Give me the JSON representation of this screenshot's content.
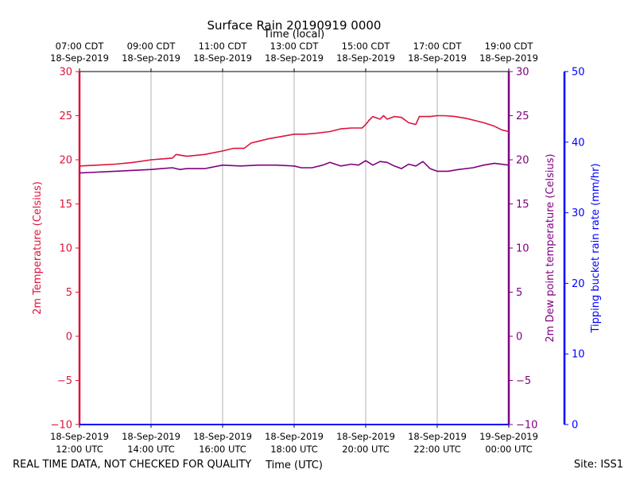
{
  "chart_data": {
    "type": "line",
    "title": "Surface Rain 20190919 0000",
    "top_xlabel": "Time (local)",
    "xlabel": "Time (UTC)",
    "footer_left": "REAL TIME DATA, NOT CHECKED FOR QUALITY",
    "footer_right": "Site: ISS1",
    "x_range_hours_utc": [
      12,
      24
    ],
    "grid": "vertical",
    "top_ticks": [
      {
        "h": 12,
        "l1": "07:00 CDT",
        "l2": "18-Sep-2019"
      },
      {
        "h": 14,
        "l1": "09:00 CDT",
        "l2": "18-Sep-2019"
      },
      {
        "h": 16,
        "l1": "11:00 CDT",
        "l2": "18-Sep-2019"
      },
      {
        "h": 18,
        "l1": "13:00 CDT",
        "l2": "18-Sep-2019"
      },
      {
        "h": 20,
        "l1": "15:00 CDT",
        "l2": "18-Sep-2019"
      },
      {
        "h": 22,
        "l1": "17:00 CDT",
        "l2": "18-Sep-2019"
      },
      {
        "h": 24,
        "l1": "19:00 CDT",
        "l2": "18-Sep-2019"
      }
    ],
    "bottom_ticks": [
      {
        "h": 12,
        "l1": "18-Sep-2019",
        "l2": "12:00 UTC"
      },
      {
        "h": 14,
        "l1": "18-Sep-2019",
        "l2": "14:00 UTC"
      },
      {
        "h": 16,
        "l1": "18-Sep-2019",
        "l2": "16:00 UTC"
      },
      {
        "h": 18,
        "l1": "18-Sep-2019",
        "l2": "18:00 UTC"
      },
      {
        "h": 20,
        "l1": "18-Sep-2019",
        "l2": "20:00 UTC"
      },
      {
        "h": 22,
        "l1": "18-Sep-2019",
        "l2": "22:00 UTC"
      },
      {
        "h": 24,
        "l1": "19-Sep-2019",
        "l2": "00:00 UTC"
      }
    ],
    "axes": {
      "temp": {
        "label": "2m Temperature (Celsius)",
        "color": "#dc143c",
        "range": [
          -10,
          30
        ],
        "ticks": [
          "30",
          "25",
          "20",
          "15",
          "10",
          "5",
          "0",
          "−5",
          "−10"
        ]
      },
      "dew": {
        "label": "2m Dew point temperature (Celsius)",
        "color": "#800080",
        "range": [
          -10,
          30
        ],
        "ticks": [
          "30",
          "25",
          "20",
          "15",
          "10",
          "5",
          "0",
          "−5",
          "−10"
        ]
      },
      "rain": {
        "label": "Tipping bucket rain rate (mm/hr)",
        "color": "#0000ff",
        "range": [
          0,
          50
        ],
        "ticks": [
          "50",
          "40",
          "30",
          "20",
          "10",
          "0"
        ]
      }
    },
    "series": [
      {
        "name": "2m Temperature",
        "color": "#dc143c",
        "points": [
          [
            12.0,
            19.3
          ],
          [
            12.5,
            19.4
          ],
          [
            13.0,
            19.5
          ],
          [
            13.5,
            19.7
          ],
          [
            14.0,
            20.0
          ],
          [
            14.3,
            20.1
          ],
          [
            14.6,
            20.2
          ],
          [
            14.7,
            20.6
          ],
          [
            15.0,
            20.4
          ],
          [
            15.5,
            20.6
          ],
          [
            16.0,
            21.0
          ],
          [
            16.3,
            21.3
          ],
          [
            16.6,
            21.3
          ],
          [
            16.8,
            21.9
          ],
          [
            17.0,
            22.1
          ],
          [
            17.3,
            22.4
          ],
          [
            17.6,
            22.6
          ],
          [
            18.0,
            22.9
          ],
          [
            18.3,
            22.9
          ],
          [
            18.6,
            23.0
          ],
          [
            19.0,
            23.2
          ],
          [
            19.3,
            23.5
          ],
          [
            19.6,
            23.6
          ],
          [
            19.9,
            23.6
          ],
          [
            20.0,
            24.0
          ],
          [
            20.1,
            24.5
          ],
          [
            20.2,
            24.9
          ],
          [
            20.4,
            24.6
          ],
          [
            20.5,
            25.0
          ],
          [
            20.6,
            24.6
          ],
          [
            20.8,
            24.9
          ],
          [
            21.0,
            24.8
          ],
          [
            21.2,
            24.2
          ],
          [
            21.4,
            24.0
          ],
          [
            21.5,
            24.9
          ],
          [
            21.8,
            24.9
          ],
          [
            22.0,
            25.0
          ],
          [
            22.2,
            25.0
          ],
          [
            22.5,
            24.9
          ],
          [
            22.8,
            24.7
          ],
          [
            23.0,
            24.5
          ],
          [
            23.3,
            24.2
          ],
          [
            23.6,
            23.8
          ],
          [
            23.8,
            23.4
          ],
          [
            24.0,
            23.2
          ]
        ]
      },
      {
        "name": "2m Dew point temperature",
        "color": "#800080",
        "points": [
          [
            12.0,
            18.5
          ],
          [
            12.5,
            18.6
          ],
          [
            13.0,
            18.7
          ],
          [
            13.5,
            18.8
          ],
          [
            14.0,
            18.9
          ],
          [
            14.3,
            19.0
          ],
          [
            14.6,
            19.1
          ],
          [
            14.8,
            18.9
          ],
          [
            15.0,
            19.0
          ],
          [
            15.5,
            19.0
          ],
          [
            16.0,
            19.4
          ],
          [
            16.5,
            19.3
          ],
          [
            17.0,
            19.4
          ],
          [
            17.5,
            19.4
          ],
          [
            18.0,
            19.3
          ],
          [
            18.2,
            19.1
          ],
          [
            18.5,
            19.1
          ],
          [
            18.8,
            19.4
          ],
          [
            19.0,
            19.7
          ],
          [
            19.3,
            19.3
          ],
          [
            19.6,
            19.5
          ],
          [
            19.8,
            19.4
          ],
          [
            20.0,
            19.9
          ],
          [
            20.2,
            19.4
          ],
          [
            20.4,
            19.8
          ],
          [
            20.6,
            19.7
          ],
          [
            20.8,
            19.3
          ],
          [
            21.0,
            19.0
          ],
          [
            21.2,
            19.5
          ],
          [
            21.4,
            19.3
          ],
          [
            21.6,
            19.8
          ],
          [
            21.8,
            19.0
          ],
          [
            22.0,
            18.7
          ],
          [
            22.3,
            18.7
          ],
          [
            22.6,
            18.9
          ],
          [
            23.0,
            19.1
          ],
          [
            23.3,
            19.4
          ],
          [
            23.6,
            19.6
          ],
          [
            24.0,
            19.4
          ]
        ]
      },
      {
        "name": "Tipping bucket rain rate",
        "color": "#0000ff",
        "points": [
          [
            12.0,
            0
          ],
          [
            24.0,
            0
          ]
        ]
      }
    ]
  }
}
